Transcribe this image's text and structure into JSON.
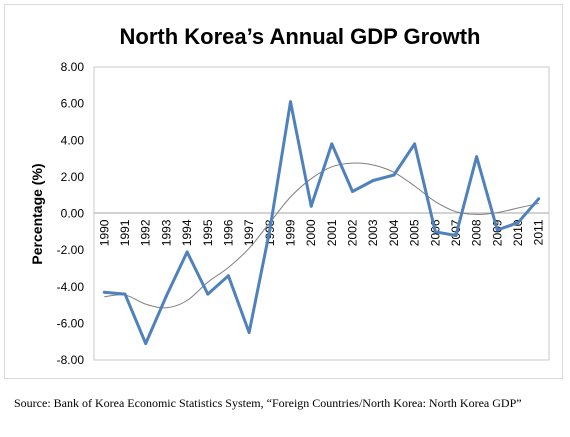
{
  "chart_data": {
    "type": "line",
    "title": "North Korea’s Annual GDP Growth",
    "xlabel": "",
    "ylabel": "Percentage (%)",
    "ylim": [
      -8,
      8
    ],
    "y_ticks": [
      "8.00",
      "6.00",
      "4.00",
      "2.00",
      "0.00",
      "-2.00",
      "-4.00",
      "-6.00",
      "-8.00"
    ],
    "x": [
      "1990",
      "1991",
      "1992",
      "1993",
      "1994",
      "1995",
      "1996",
      "1997",
      "1998",
      "1999",
      "2000",
      "2001",
      "2002",
      "2003",
      "2004",
      "2005",
      "2006",
      "2007",
      "2008",
      "2009",
      "2010",
      "2011"
    ],
    "series": [
      {
        "values": [
          -4.3,
          -4.4,
          -7.1,
          -4.5,
          -2.1,
          -4.4,
          -3.4,
          -6.5,
          -0.9,
          6.1,
          0.4,
          3.8,
          1.2,
          1.8,
          2.1,
          3.8,
          -1.0,
          -1.2,
          3.1,
          -0.9,
          -0.5,
          0.8
        ],
        "color": "#4f81bd"
      },
      {
        "trend": "polynomial",
        "values": [
          -4.55,
          -4.45,
          -4.95,
          -5.15,
          -4.75,
          -3.75,
          -2.95,
          -1.9,
          -0.5,
          0.9,
          1.9,
          2.55,
          2.75,
          2.65,
          2.25,
          1.5,
          0.65,
          0.1,
          -0.05,
          0.05,
          0.3,
          0.55
        ],
        "color": "#7f7f7f"
      }
    ],
    "grid": false,
    "legend": "none"
  },
  "source_text": "Source: Bank of Korea Economic Statistics System, “Foreign Countries/North Korea: North Korea GDP”"
}
